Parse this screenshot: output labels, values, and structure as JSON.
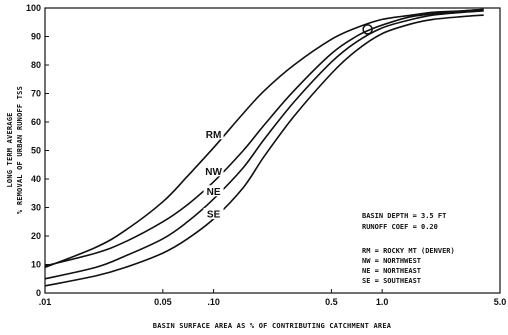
{
  "chart_data": {
    "type": "line",
    "title": "",
    "ylabel_lines": [
      "LONG TERM AVERAGE",
      "% REMOVAL OF URBAN RUNOFF TSS"
    ],
    "xlabel": "BASIN SURFACE AREA AS % OF CONTRIBUTING CATCHMENT AREA",
    "x_scale": "log",
    "xlim": [
      0.01,
      5.0
    ],
    "ylim": [
      0,
      100
    ],
    "x_ticks": [
      {
        "value": 0.01,
        "label": ".01"
      },
      {
        "value": 0.05,
        "label": "0.05"
      },
      {
        "value": 0.1,
        "label": ".10"
      },
      {
        "value": 0.5,
        "label": "0.5"
      },
      {
        "value": 1.0,
        "label": "1.0"
      },
      {
        "value": 5.0,
        "label": "5.0"
      }
    ],
    "y_ticks": [
      0,
      10,
      20,
      30,
      40,
      50,
      60,
      70,
      80,
      90,
      100
    ],
    "series": [
      {
        "name": "RM",
        "x": [
          0.01,
          0.02,
          0.03,
          0.05,
          0.07,
          0.1,
          0.15,
          0.2,
          0.3,
          0.5,
          0.7,
          1.0,
          1.5,
          2.0,
          3.0,
          4.0
        ],
        "y": [
          9,
          16,
          22,
          32,
          41,
          51,
          63,
          71,
          80,
          89,
          93,
          96,
          97.5,
          98.5,
          99,
          99.5
        ]
      },
      {
        "name": "NW",
        "x": [
          0.01,
          0.02,
          0.03,
          0.05,
          0.07,
          0.1,
          0.15,
          0.2,
          0.3,
          0.5,
          0.7,
          0.9,
          1.2,
          1.5,
          2.0,
          3.0,
          4.0
        ],
        "y": [
          9.5,
          14,
          18,
          25,
          31,
          39,
          50,
          59,
          71,
          84,
          90,
          93,
          95.5,
          97,
          98,
          99,
          99.5
        ]
      },
      {
        "name": "NE",
        "x": [
          0.01,
          0.02,
          0.03,
          0.05,
          0.07,
          0.1,
          0.15,
          0.2,
          0.3,
          0.5,
          0.7,
          1.0,
          1.5,
          2.0,
          3.0,
          4.0
        ],
        "y": [
          5,
          9,
          13,
          19,
          25,
          33,
          44,
          54,
          67,
          81,
          88,
          93,
          96,
          97.5,
          98.5,
          99
        ]
      },
      {
        "name": "SE",
        "x": [
          0.01,
          0.02,
          0.03,
          0.05,
          0.07,
          0.1,
          0.15,
          0.2,
          0.3,
          0.5,
          0.7,
          1.0,
          1.5,
          2.0,
          3.0,
          4.0
        ],
        "y": [
          2.5,
          6,
          9,
          14,
          19,
          26,
          37,
          48,
          62,
          77,
          85,
          91,
          94.5,
          96,
          97,
          97.5
        ]
      }
    ],
    "curve_labels": [
      {
        "text": "RM",
        "x": 0.1,
        "y": 55
      },
      {
        "text": "NW",
        "x": 0.1,
        "y": 42
      },
      {
        "text": "NE",
        "x": 0.1,
        "y": 35
      },
      {
        "text": "SE",
        "x": 0.1,
        "y": 27
      }
    ],
    "marker": {
      "shape": "circle",
      "x": 0.82,
      "y": 92.5
    },
    "legend": {
      "placement": "bottom-right",
      "parameters": [
        "BASIN DEPTH = 3.5 FT",
        "RUNOFF COEF = 0.20"
      ],
      "entries": [
        "RM = ROCKY MT (DENVER)",
        "NW = NORTHWEST",
        "NE = NORTHEAST",
        "SE = SOUTHEAST"
      ]
    },
    "grid": false
  }
}
